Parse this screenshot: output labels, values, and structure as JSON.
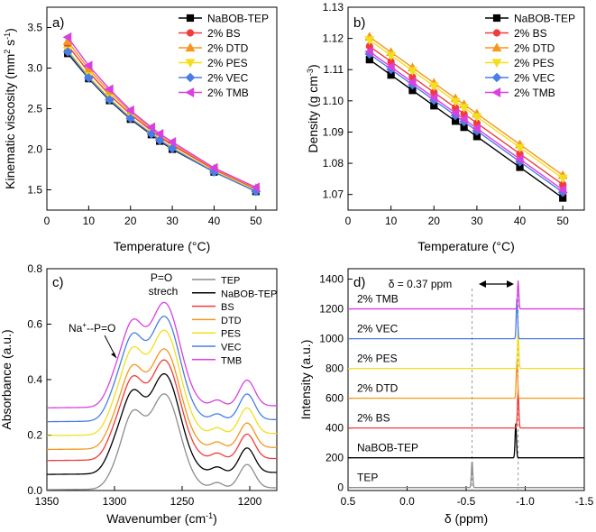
{
  "colors": {
    "NaBOB-TEP": "#000000",
    "2% BS": "#f03c3c",
    "2% DTD": "#f5961e",
    "2% PES": "#f2df1e",
    "2% VEC": "#4a7de6",
    "2% TMB": "#d940e0",
    "TEP": "#8c8c8c"
  },
  "chart_data": [
    {
      "panel": "a)",
      "type": "line",
      "xlabel": "Temperature (°C)",
      "ylabel_main": "Kinematic viscosity (mm",
      "ylabel_sup1": "2",
      "ylabel_mid": " s",
      "ylabel_sup2": "-1",
      "ylabel_end": ")",
      "xlim": [
        0,
        55
      ],
      "ylim": [
        1.25,
        3.75
      ],
      "xticks": [
        0,
        10,
        20,
        30,
        40,
        50
      ],
      "xtick_labels": [
        "0",
        "10",
        "20",
        "30",
        "40",
        "50"
      ],
      "yticks": [
        1.5,
        2.0,
        2.5,
        3.0,
        3.5
      ],
      "ytick_labels": [
        "1.5",
        "2.0",
        "2.5",
        "3.0",
        "3.5"
      ],
      "legend_position": "top-right",
      "x": [
        5,
        10,
        15,
        20,
        25,
        27,
        30,
        40,
        50
      ],
      "series": [
        {
          "name": "NaBOB-TEP",
          "marker": "square",
          "values": [
            3.18,
            2.87,
            2.6,
            2.37,
            2.18,
            2.1,
            2.0,
            1.72,
            1.48
          ]
        },
        {
          "name": "2% BS",
          "marker": "circle",
          "values": [
            3.28,
            2.95,
            2.67,
            2.43,
            2.23,
            2.15,
            2.05,
            1.75,
            1.51
          ]
        },
        {
          "name": "2% DTD",
          "marker": "triangle-up",
          "values": [
            3.33,
            2.99,
            2.71,
            2.46,
            2.25,
            2.17,
            2.07,
            1.76,
            1.52
          ]
        },
        {
          "name": "2% PES",
          "marker": "triangle-down",
          "values": [
            3.22,
            2.9,
            2.63,
            2.39,
            2.2,
            2.12,
            2.02,
            1.73,
            1.49
          ]
        },
        {
          "name": "2% VEC",
          "marker": "diamond",
          "values": [
            3.2,
            2.88,
            2.61,
            2.38,
            2.19,
            2.11,
            2.01,
            1.72,
            1.48
          ]
        },
        {
          "name": "2% TMB",
          "marker": "triangle-left",
          "values": [
            3.38,
            3.03,
            2.74,
            2.48,
            2.27,
            2.19,
            2.09,
            1.77,
            1.53
          ]
        }
      ]
    },
    {
      "panel": "b)",
      "type": "line",
      "xlabel": "Temperature (°C)",
      "ylabel_main": "Density (g cm",
      "ylabel_sup1": "-3",
      "ylabel_end": ")",
      "xlim": [
        0,
        55
      ],
      "ylim": [
        1.065,
        1.13
      ],
      "xticks": [
        0,
        10,
        20,
        30,
        40,
        50
      ],
      "xtick_labels": [
        "0",
        "10",
        "20",
        "30",
        "40",
        "50"
      ],
      "yticks": [
        1.07,
        1.08,
        1.09,
        1.1,
        1.11,
        1.12,
        1.13
      ],
      "ytick_labels": [
        "1.07",
        "1.08",
        "1.09",
        "1.10",
        "1.11",
        "1.12",
        "1.13"
      ],
      "legend_position": "top-right",
      "x": [
        5,
        10,
        15,
        20,
        25,
        27,
        30,
        40,
        50
      ],
      "series": [
        {
          "name": "NaBOB-TEP",
          "marker": "square",
          "start": 1.1132,
          "slope": -0.000985
        },
        {
          "name": "2% BS",
          "marker": "circle",
          "start": 1.1175,
          "slope": -0.000985
        },
        {
          "name": "2% DTD",
          "marker": "triangle-up",
          "start": 1.1205,
          "slope": -0.000985
        },
        {
          "name": "2% PES",
          "marker": "triangle-down",
          "start": 1.1195,
          "slope": -0.000985
        },
        {
          "name": "2% VEC",
          "marker": "diamond",
          "start": 1.115,
          "slope": -0.000985
        },
        {
          "name": "2% TMB",
          "marker": "triangle-left",
          "start": 1.1158,
          "slope": -0.000985
        }
      ]
    },
    {
      "panel": "c)",
      "type": "line",
      "xlabel_main": "Wavenumber (cm",
      "xlabel_sup": "-1",
      "xlabel_end": ")",
      "ylabel": "Absorbance (a.u.)",
      "xlim": [
        1350,
        1180
      ],
      "ylim": [
        0.0,
        0.8
      ],
      "xticks": [
        1350,
        1300,
        1250,
        1200
      ],
      "xtick_labels": [
        "1350",
        "1300",
        "1250",
        "1200"
      ],
      "yticks": [
        0.0,
        0.2,
        0.4,
        0.6,
        0.8
      ],
      "ytick_labels": [
        "0.0",
        "0.2",
        "0.4",
        "0.6",
        "0.8"
      ],
      "legend_position": "top-right",
      "annotations": {
        "peak_line1": "P=O",
        "peak_line2": "strech",
        "shoulder_main": "Na",
        "shoulder_sup": "+",
        "shoulder_end": "--P=O"
      },
      "series": [
        {
          "name": "TEP",
          "offset": 0.0,
          "scale": 1.0
        },
        {
          "name": "NaBOB-TEP",
          "offset": 0.055,
          "scale": 1.05
        },
        {
          "name": "BS",
          "offset": 0.105,
          "scale": 1.05
        },
        {
          "name": "DTD",
          "offset": 0.145,
          "scale": 1.05
        },
        {
          "name": "PES",
          "offset": 0.195,
          "scale": 1.1
        },
        {
          "name": "VEC",
          "offset": 0.245,
          "scale": 1.1
        },
        {
          "name": "TMB",
          "offset": 0.295,
          "scale": 1.1
        }
      ]
    },
    {
      "panel": "d)",
      "type": "line",
      "xlabel": "δ (ppm)",
      "ylabel": "Intensity (a.u.)",
      "xlim": [
        0.5,
        -1.5
      ],
      "ylim": [
        -20,
        1470
      ],
      "xticks": [
        0.5,
        0.0,
        -0.5,
        -1.0,
        -1.5
      ],
      "xtick_labels": [
        "0.5",
        "0.0",
        "-0.5",
        "-1.0",
        "-1.5"
      ],
      "yticks": [
        0,
        200,
        400,
        600,
        800,
        1000,
        1200,
        1400
      ],
      "ytick_labels": [
        "0",
        "200",
        "400",
        "600",
        "800",
        "1000",
        "1200",
        "1400"
      ],
      "annotation": "δ = 0.37 ppm",
      "reference_lines": [
        -0.55,
        -0.94
      ],
      "series": [
        {
          "name": "TEP",
          "baseline": 0,
          "peak": -0.55,
          "height": 180
        },
        {
          "name": "NaBOB-TEP",
          "baseline": 200,
          "peak": -0.92,
          "height": 230
        },
        {
          "name": "2% BS",
          "baseline": 400,
          "peak": -0.94,
          "height": 260
        },
        {
          "name": "2% DTD",
          "baseline": 600,
          "peak": -0.93,
          "height": 270
        },
        {
          "name": "2% PES",
          "baseline": 800,
          "peak": -0.94,
          "height": 260
        },
        {
          "name": "2% VEC",
          "baseline": 1000,
          "peak": -0.93,
          "height": 280
        },
        {
          "name": "2% TMB",
          "baseline": 1200,
          "peak": -0.94,
          "height": 190
        }
      ]
    }
  ]
}
